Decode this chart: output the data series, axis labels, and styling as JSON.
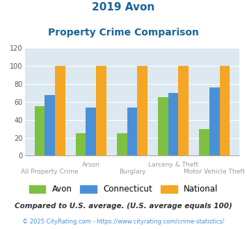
{
  "title_line1": "2019 Avon",
  "title_line2": "Property Crime Comparison",
  "xlabel_top": [
    "",
    "Arson",
    "",
    "Larceny & Theft",
    ""
  ],
  "xlabel_bottom": [
    "All Property Crime",
    "",
    "Burglary",
    "",
    "Motor Vehicle Theft"
  ],
  "avon_values": [
    55,
    25,
    25,
    65,
    30
  ],
  "ct_values": [
    68,
    54,
    54,
    70,
    76
  ],
  "national_values": [
    100,
    100,
    100,
    100,
    100
  ],
  "avon_color": "#7dc142",
  "ct_color": "#4a90d9",
  "national_color": "#f5a623",
  "ylim": [
    0,
    120
  ],
  "yticks": [
    0,
    20,
    40,
    60,
    80,
    100,
    120
  ],
  "title_color": "#1a6496",
  "bg_color": "#dce9f0",
  "legend_labels": [
    "Avon",
    "Connecticut",
    "National"
  ],
  "footnote1": "Compared to U.S. average. (U.S. average equals 100)",
  "footnote2": "© 2025 CityRating.com - https://www.cityrating.com/crime-statistics/",
  "footnote1_color": "#333333",
  "footnote2_color": "#4a90d9",
  "label_color": "#9999aa"
}
